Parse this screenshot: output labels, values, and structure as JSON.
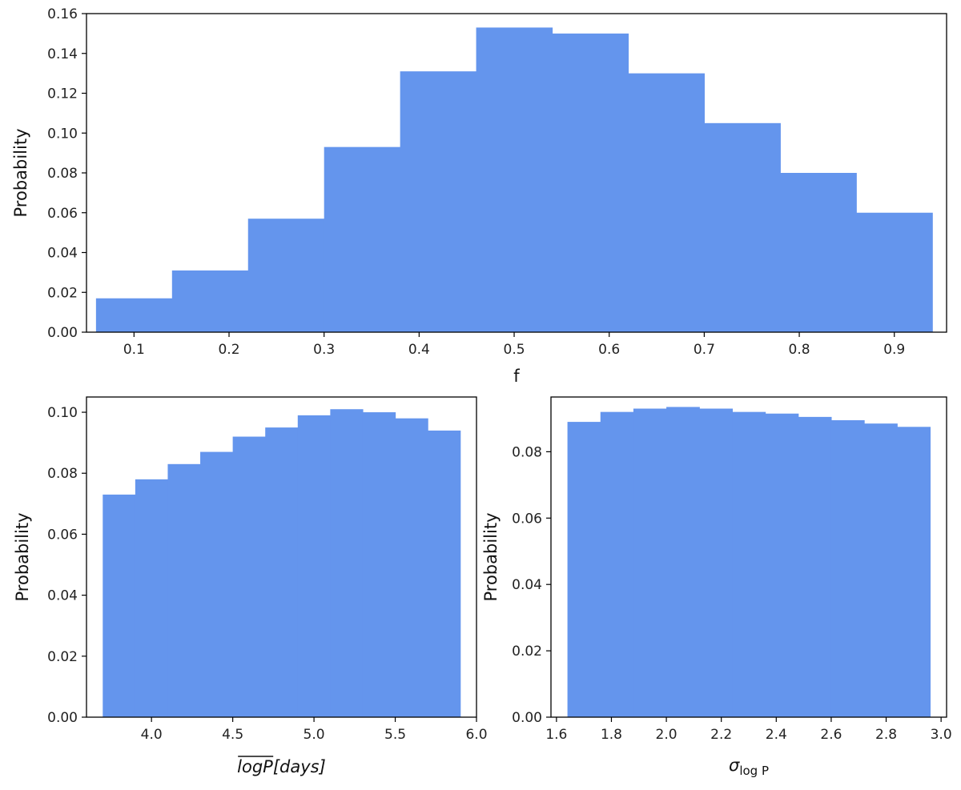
{
  "chart_data": [
    {
      "type": "bar",
      "xlabel": "f",
      "ylabel": "Probability",
      "color": "#6495ED",
      "xlim": [
        0.05,
        0.955
      ],
      "ylim": [
        0,
        0.16
      ],
      "xticks": [
        "0.1",
        "0.2",
        "0.3",
        "0.4",
        "0.5",
        "0.6",
        "0.7",
        "0.8",
        "0.9"
      ],
      "yticks": [
        "0.00",
        "0.02",
        "0.04",
        "0.06",
        "0.08",
        "0.10",
        "0.12",
        "0.14",
        "0.16"
      ],
      "bin_edges": [
        0.06,
        0.14,
        0.22,
        0.3,
        0.38,
        0.46,
        0.54,
        0.62,
        0.7,
        0.78,
        0.86,
        0.94
      ],
      "values": [
        0.017,
        0.031,
        0.057,
        0.093,
        0.131,
        0.153,
        0.15,
        0.13,
        0.105,
        0.08,
        0.06
      ],
      "grid": false
    },
    {
      "type": "bar",
      "xlabel_base": "logP",
      "xlabel_suffix": "[days]",
      "ylabel": "Probability",
      "color": "#6495ED",
      "xlim": [
        3.6,
        6.0
      ],
      "ylim": [
        0,
        0.105
      ],
      "xticks": [
        "4.0",
        "4.5",
        "5.0",
        "5.5",
        "6.0"
      ],
      "yticks": [
        "0.00",
        "0.02",
        "0.04",
        "0.06",
        "0.08",
        "0.10"
      ],
      "bin_edges": [
        3.7,
        3.9,
        4.1,
        4.3,
        4.5,
        4.7,
        4.9,
        5.1,
        5.3,
        5.5,
        5.7,
        5.9
      ],
      "values": [
        0.073,
        0.078,
        0.083,
        0.087,
        0.092,
        0.095,
        0.099,
        0.101,
        0.1,
        0.098,
        0.094
      ],
      "grid": false
    },
    {
      "type": "bar",
      "xlabel_base": "σ",
      "xlabel_sub": "log P",
      "ylabel": "Probability",
      "color": "#6495ED",
      "xlim": [
        1.58,
        3.02
      ],
      "ylim": [
        0,
        0.0965
      ],
      "xticks": [
        "1.6",
        "1.8",
        "2.0",
        "2.2",
        "2.4",
        "2.6",
        "2.8",
        "3.0"
      ],
      "yticks": [
        "0.00",
        "0.02",
        "0.04",
        "0.06",
        "0.08"
      ],
      "bin_edges": [
        1.64,
        1.76,
        1.88,
        2.0,
        2.12,
        2.24,
        2.36,
        2.48,
        2.6,
        2.72,
        2.84,
        2.96
      ],
      "values": [
        0.089,
        0.092,
        0.093,
        0.0935,
        0.093,
        0.092,
        0.0915,
        0.0905,
        0.0895,
        0.0885,
        0.0875
      ],
      "grid": false
    }
  ]
}
